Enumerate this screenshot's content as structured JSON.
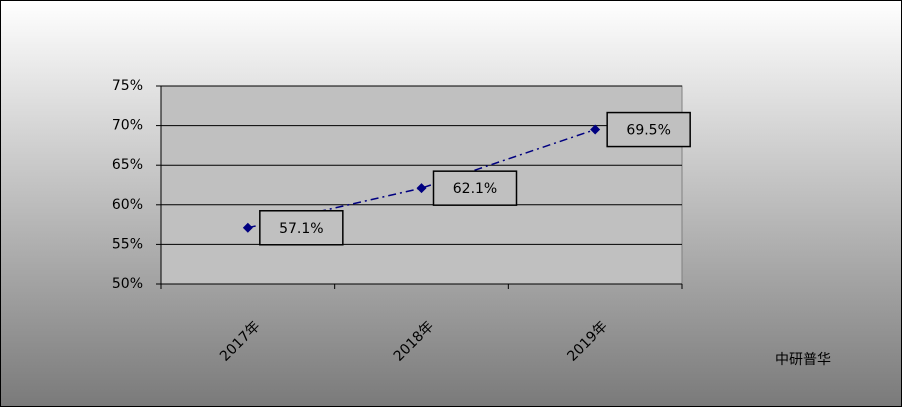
{
  "chart_data": {
    "type": "line",
    "categories": [
      "2017年",
      "2018年",
      "2019年"
    ],
    "series": [
      {
        "name": null,
        "color": "#000080",
        "values": [
          57.1,
          62.1,
          69.5
        ],
        "value_labels": [
          "57.1%",
          "62.1%",
          "69.5%"
        ]
      }
    ],
    "ylim": [
      50,
      75
    ],
    "yticks": [
      {
        "value": 50,
        "label": "50%"
      },
      {
        "value": 55,
        "label": "55%"
      },
      {
        "value": 60,
        "label": "60%"
      },
      {
        "value": 65,
        "label": "65%"
      },
      {
        "value": 70,
        "label": "70%"
      },
      {
        "value": 75,
        "label": "75%"
      }
    ],
    "grid": true,
    "source": "中研普华"
  }
}
